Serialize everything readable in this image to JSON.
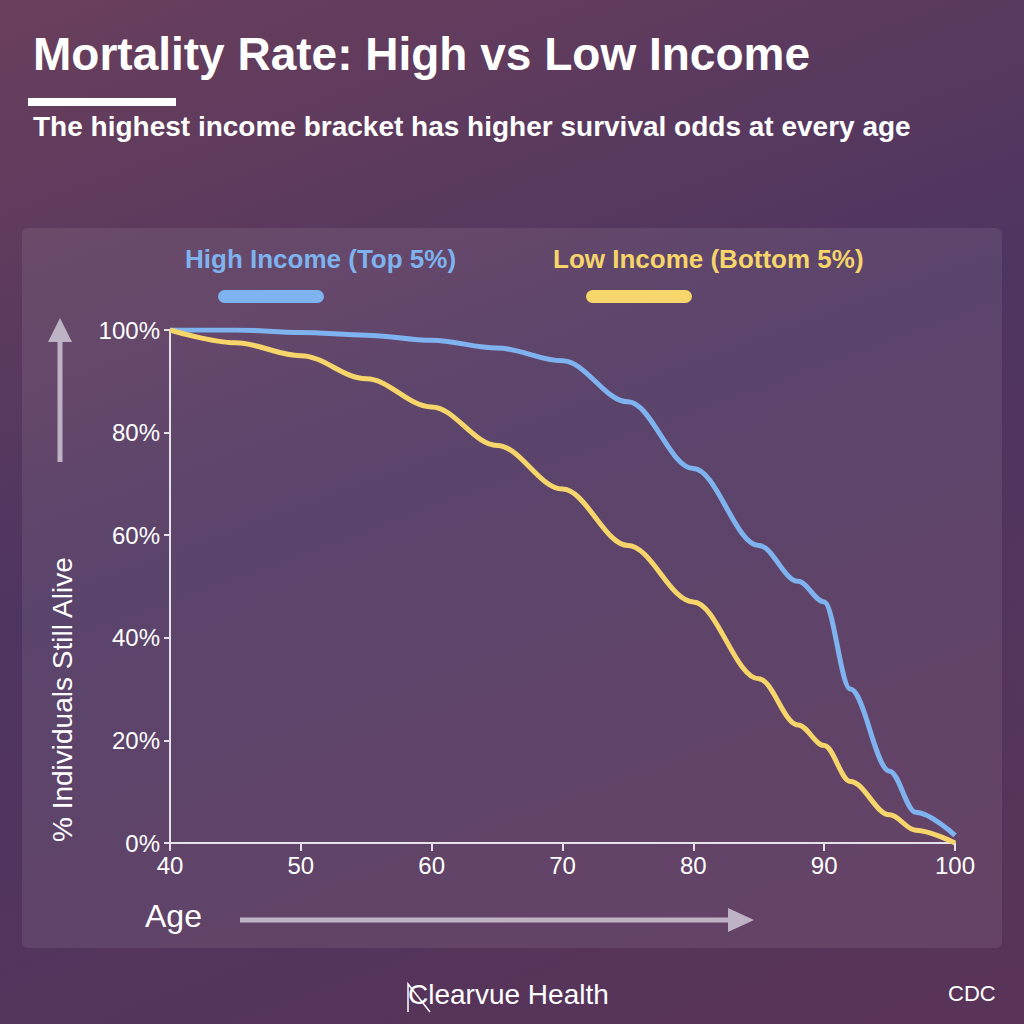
{
  "chart_data": {
    "type": "line",
    "title": "Mortality Rate: High vs Low Income",
    "subtitle": "The highest income bracket has higher survival odds at every age",
    "x_label": "Age",
    "y_label": "% Individuals Still Alive",
    "source": "CDC",
    "brand": "Clearvue Health",
    "x": [
      40,
      45,
      50,
      55,
      60,
      65,
      70,
      75,
      80,
      85,
      88,
      90,
      92,
      95,
      97,
      100
    ],
    "series": [
      {
        "name": "High Income (Top 5%)",
        "color": "#7fb3ef",
        "values": [
          100,
          100,
          99.5,
          99,
          98,
          96.5,
          94,
          86,
          73,
          58,
          51,
          47,
          30,
          14,
          6,
          1.5
        ]
      },
      {
        "name": "Low Income (Bottom 5%)",
        "color": "#f6d56a",
        "values": [
          100,
          97.5,
          95,
          90.5,
          85,
          77.5,
          69,
          58,
          47,
          32,
          23,
          19,
          12,
          5.5,
          2.5,
          0
        ]
      }
    ],
    "xlim": [
      40,
      100
    ],
    "xticks": [
      40,
      50,
      60,
      70,
      80,
      90,
      100
    ],
    "ylim": [
      0,
      100
    ],
    "yticks": [
      {
        "value": 0,
        "label": "0%"
      },
      {
        "value": 20,
        "label": "20%"
      },
      {
        "value": 40,
        "label": "40%"
      },
      {
        "value": 60,
        "label": "60%"
      },
      {
        "value": 80,
        "label": "80%"
      },
      {
        "value": 100,
        "label": "100%"
      }
    ],
    "grid": false,
    "legend": "top"
  }
}
